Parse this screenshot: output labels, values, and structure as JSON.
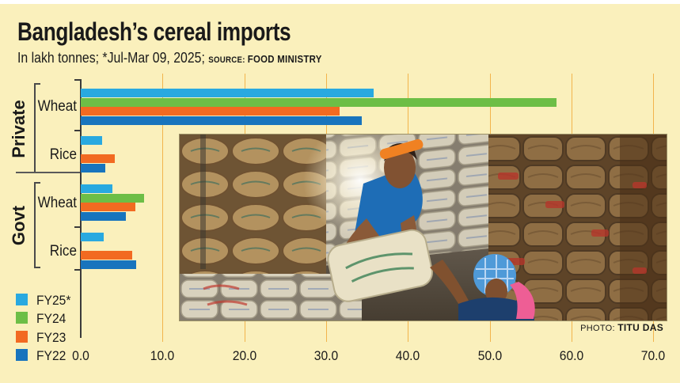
{
  "header": {
    "title": "Bangladesh’s cereal imports",
    "subtitle_main": "In lakh tonnes; *Jul-Mar 09, 2025; ",
    "source_label": "SOURCE: ",
    "source_name": "FOOD MINISTRY"
  },
  "axis": {
    "group_labels": [
      "Private",
      "Govt"
    ],
    "row_labels": [
      "Wheat",
      "Rice",
      "Wheat",
      "Rice"
    ]
  },
  "chart_data": {
    "type": "bar",
    "orientation": "horizontal",
    "title": "Bangladesh’s cereal imports",
    "unit": "lakh tonnes",
    "categories": [
      "Private Wheat",
      "Private Rice",
      "Govt Wheat",
      "Govt Rice"
    ],
    "series": [
      {
        "name": "FY25*",
        "color": "#29A9E0",
        "values": [
          35.8,
          2.6,
          3.9,
          2.8
        ]
      },
      {
        "name": "FY24",
        "color": "#6DBE46",
        "values": [
          58.2,
          0,
          7.7,
          0
        ]
      },
      {
        "name": "FY23",
        "color": "#F26A21",
        "values": [
          31.7,
          4.2,
          6.7,
          6.3
        ]
      },
      {
        "name": "FY22",
        "color": "#1874BD",
        "values": [
          34.4,
          3.0,
          5.5,
          6.8
        ]
      }
    ],
    "xlim": [
      0,
      70
    ],
    "xticks": [
      "0.0",
      "10.0",
      "20.0",
      "30.0",
      "40.0",
      "50.0",
      "60.0",
      "70.0"
    ],
    "grid": "vertical",
    "legend_position": "bottom-left"
  },
  "photo": {
    "credit_label": "PHOTO: ",
    "credit_name": "TITU DAS"
  },
  "colors": {
    "background": "#FAF0BC",
    "gridline": "#F2B44C",
    "axis": "#3B3B3B",
    "fy25": "#29A9E0",
    "fy24": "#6DBE46",
    "fy23": "#F26A21",
    "fy22": "#1874BD"
  }
}
